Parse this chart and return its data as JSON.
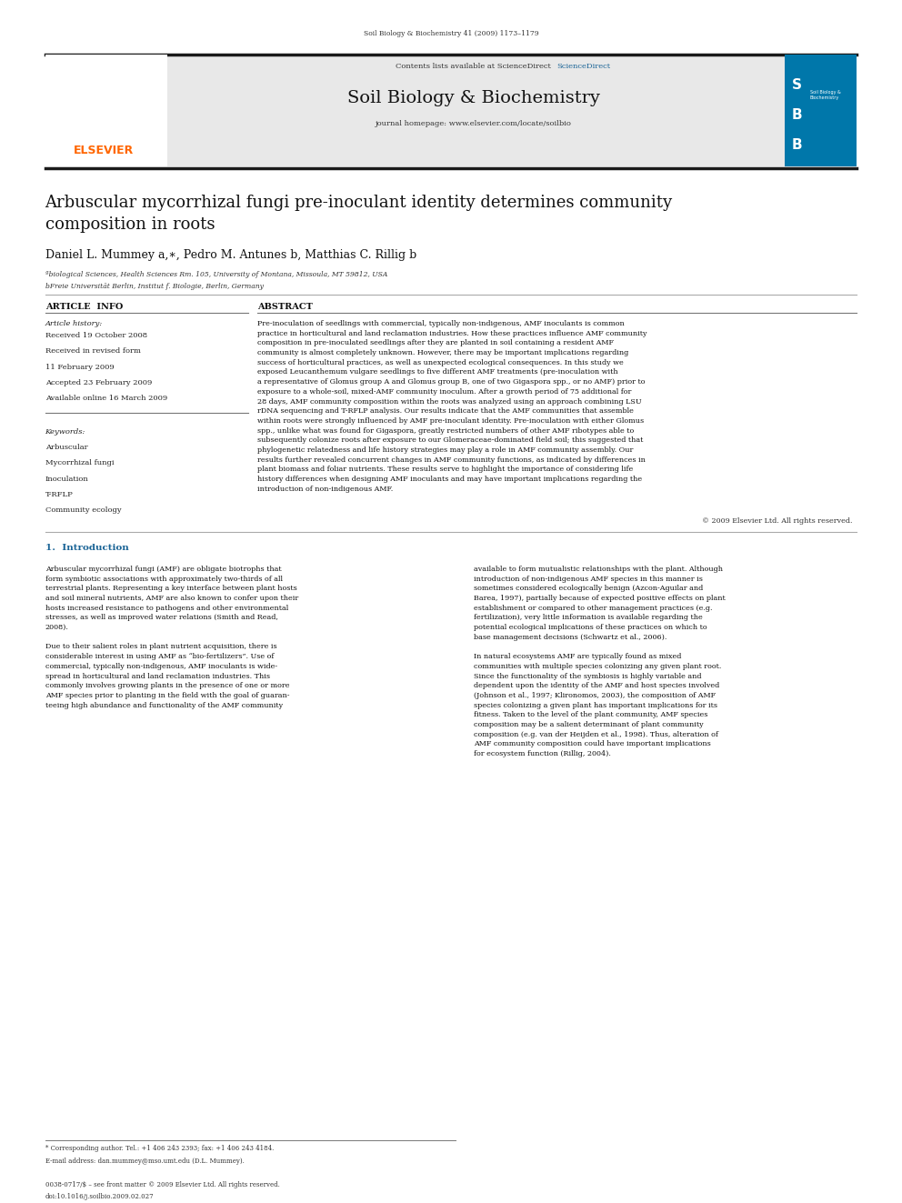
{
  "page_width": 9.92,
  "page_height": 13.23,
  "background_color": "#ffffff",
  "journal_ref": "Soil Biology & Biochemistry 41 (2009) 1173–1179",
  "contents_line": "Contents lists available at ScienceDirect",
  "sciencedirect_color": "#1a6496",
  "journal_title": "Soil Biology & Biochemistry",
  "journal_homepage": "journal homepage: www.elsevier.com/locate/soilbio",
  "header_bg": "#e8e8e8",
  "black_bar_color": "#1a1a1a",
  "elsevier_color": "#ff6600",
  "paper_title": "Arbuscular mycorrhizal fungi pre-inoculant identity determines community\ncomposition in roots",
  "authors": "Daniel L. Mummey a,∗, Pedro M. Antunes b, Matthias C. Rillig b",
  "affil1": "ªbiological Sciences, Health Sciences Rm. 105, University of Montana, Missoula, MT 59812, USA",
  "affil2": "bFreie Universität Berlin, Institut f. Biologie, Berlin, Germany",
  "article_info_title": "ARTICLE  INFO",
  "abstract_title": "ABSTRACT",
  "article_history_title": "Article history:",
  "received1": "Received 19 October 2008",
  "received2": "Received in revised form",
  "received2b": "11 February 2009",
  "accepted": "Accepted 23 February 2009",
  "available": "Available online 16 March 2009",
  "keywords_title": "Keywords:",
  "keywords": [
    "Arbuscular",
    "Mycorrhizal fungi",
    "Inoculation",
    "T-RFLP",
    "Community ecology"
  ],
  "abstract_text": "Pre-inoculation of seedlings with commercial, typically non-indigenous, AMF inoculants is common\npractice in horticultural and land reclamation industries. How these practices influence AMF community\ncomposition in pre-inoculated seedlings after they are planted in soil containing a resident AMF\ncommunity is almost completely unknown. However, there may be important implications regarding\nsuccess of horticultural practices, as well as unexpected ecological consequences. In this study we\nexposed Leucanthemum vulgare seedlings to five different AMF treatments (pre-inoculation with\na representative of Glomus group A and Glomus group B, one of two Gigaspora spp., or no AMF) prior to\nexposure to a whole-soil, mixed-AMF community inoculum. After a growth period of 75 additional for\n28 days, AMF community composition within the roots was analyzed using an approach combining LSU\nrDNA sequencing and T-RFLP analysis. Our results indicate that the AMF communities that assemble\nwithin roots were strongly influenced by AMF pre-inoculant identity. Pre-inoculation with either Glomus\nspp., unlike what was found for Gigaspora, greatly restricted numbers of other AMF ribotypes able to\nsubsequently colonize roots after exposure to our Glomeraceae-dominated field soil; this suggested that\nphylogenetic relatedness and life history strategies may play a role in AMF community assembly. Our\nresults further revealed concurrent changes in AMF community functions, as indicated by differences in\nplant biomass and foliar nutrients. These results serve to highlight the importance of considering life\nhistory differences when designing AMF inoculants and may have important implications regarding the\nintroduction of non-indigenous AMF.",
  "copyright": "© 2009 Elsevier Ltd. All rights reserved.",
  "section1_title": "1.  Introduction",
  "intro_col1": "Arbuscular mycorrhizal fungi (AMF) are obligate biotrophs that\nform symbiotic associations with approximately two-thirds of all\nterrestrial plants. Representing a key interface between plant hosts\nand soil mineral nutrients, AMF are also known to confer upon their\nhosts increased resistance to pathogens and other environmental\nstresses, as well as improved water relations (Smith and Read,\n2008).\n\nDue to their salient roles in plant nutrient acquisition, there is\nconsiderable interest in using AMF as “bio-fertilizers”. Use of\ncommercial, typically non-indigenous, AMF inoculants is wide-\nspread in horticultural and land reclamation industries. This\ncommonly involves growing plants in the presence of one or more\nAMF species prior to planting in the field with the goal of guaran-\nteeing high abundance and functionality of the AMF community",
  "intro_col2": "available to form mutualistic relationships with the plant. Although\nintroduction of non-indigenous AMF species in this manner is\nsometimes considered ecologically benign (Azcon-Aguilar and\nBarea, 1997), partially because of expected positive effects on plant\nestablishment or compared to other management practices (e.g.\nfertilization), very little information is available regarding the\npotential ecological implications of these practices on which to\nbase management decisions (Schwartz et al., 2006).\n\nIn natural ecosystems AMF are typically found as mixed\ncommunities with multiple species colonizing any given plant root.\nSince the functionality of the symbiosis is highly variable and\ndependent upon the identity of the AMF and host species involved\n(Johnson et al., 1997; Klironomos, 2003), the composition of AMF\nspecies colonizing a given plant has important implications for its\nfitness. Taken to the level of the plant community, AMF species\ncomposition may be a salient determinant of plant community\ncomposition (e.g. van der Heijden et al., 1998). Thus, alteration of\nAMF community composition could have important implications\nfor ecosystem function (Rillig, 2004).",
  "footnote_star": "* Corresponding author. Tel.: +1 406 243 2393; fax: +1 406 243 4184.",
  "footnote_email": "E-mail address: dan.mummey@mso.umt.edu (D.L. Mummey).",
  "bottom_left": "0038-0717/$ – see front matter © 2009 Elsevier Ltd. All rights reserved.",
  "bottom_doi": "doi:10.1016/j.soilbio.2009.02.027"
}
